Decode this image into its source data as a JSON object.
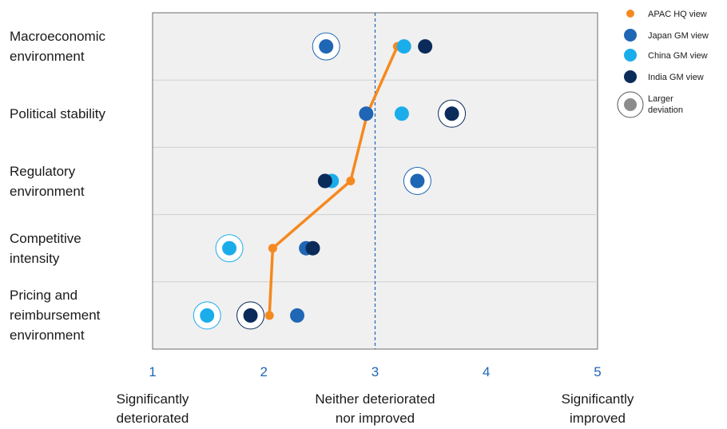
{
  "colors": {
    "apac": "#F5891F",
    "japan": "#1F66B5",
    "china": "#1AADEA",
    "india": "#0B2B5A",
    "larger": "#8C8C8C",
    "tick": "#1F66B5",
    "plot_bg": "#F0F0F0",
    "grid": "#CFCFCF",
    "axis": "#6E6E6E",
    "midline": "#1F66B5"
  },
  "chart_data": {
    "type": "scatter",
    "categories": [
      "Macroeconomic\nenvironment",
      "Political stability",
      "Regulatory\nenvironment",
      "Competitive\nintensity",
      "Pricing and\nreimbursement\nenvironment"
    ],
    "xlim": [
      1,
      5
    ],
    "xticks": [
      "1",
      "2",
      "3",
      "4",
      "5"
    ],
    "scale_labels": [
      {
        "x": 1,
        "text": "Significantly\ndeteriorated"
      },
      {
        "x": 3,
        "text": "Neither deteriorated\nnor improved"
      },
      {
        "x": 5,
        "text": "Significantly\nimproved"
      }
    ],
    "reference_line_x": 3,
    "series": [
      {
        "key": "apac",
        "name": "APAC HQ view",
        "values": [
          3.2,
          2.93,
          2.78,
          2.08,
          2.05
        ],
        "connected": true,
        "larger_deviation": [
          false,
          false,
          false,
          false,
          false
        ]
      },
      {
        "key": "japan",
        "name": "Japan GM view",
        "values": [
          2.56,
          2.92,
          3.38,
          2.38,
          2.3
        ],
        "larger_deviation": [
          true,
          false,
          true,
          false,
          false
        ]
      },
      {
        "key": "china",
        "name": "China GM view",
        "values": [
          3.26,
          3.24,
          2.61,
          1.69,
          1.49
        ],
        "larger_deviation": [
          false,
          false,
          false,
          true,
          true
        ]
      },
      {
        "key": "india",
        "name": "India GM view",
        "values": [
          3.45,
          3.69,
          2.55,
          2.44,
          1.88
        ],
        "larger_deviation": [
          false,
          true,
          false,
          false,
          true
        ]
      }
    ],
    "legend": {
      "placement": "top-right",
      "items": [
        "APAC HQ view",
        "Japan GM view",
        "China GM view",
        "India GM view"
      ],
      "larger_label": "Larger\ndeviation"
    },
    "grid": "horizontal"
  }
}
